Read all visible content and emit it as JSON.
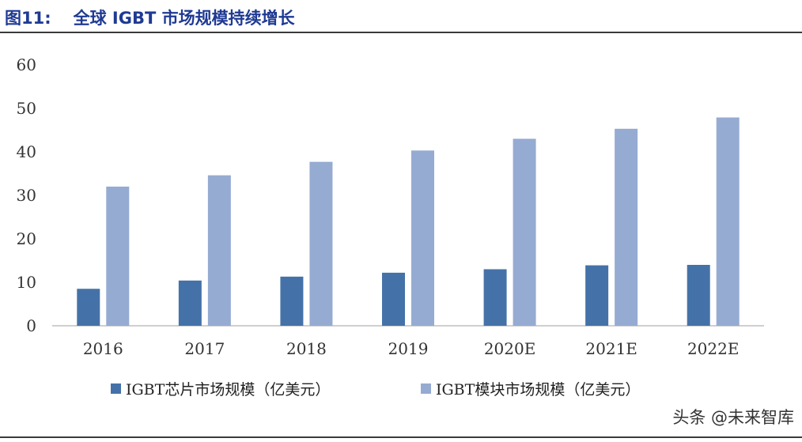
{
  "header": {
    "figure_number": "图11:",
    "title": "全球 IGBT 市场规模持续增长"
  },
  "watermark": "头条 @未来智库",
  "colors": {
    "chip_series": "#4472a8",
    "module_series": "#95abd2",
    "title": "#1f3a93",
    "axis": "#bfbfbf"
  },
  "chart_data": {
    "type": "bar",
    "title": "",
    "xlabel": "",
    "ylabel": "",
    "categories": [
      "2016",
      "2017",
      "2018",
      "2019",
      "2020E",
      "2021E",
      "2022E"
    ],
    "ylim": [
      0,
      60
    ],
    "yticks": [
      0,
      10,
      20,
      30,
      40,
      50,
      60
    ],
    "grid": false,
    "legend_position": "bottom",
    "series": [
      {
        "name": "IGBT芯片市场规模（亿美元）",
        "values": [
          8.5,
          10.4,
          11.3,
          12.2,
          13.0,
          13.9,
          14.0
        ]
      },
      {
        "name": "IGBT模块市场规模（亿美元）",
        "values": [
          32.0,
          34.6,
          37.7,
          40.3,
          43.0,
          45.3,
          47.9
        ]
      }
    ]
  }
}
